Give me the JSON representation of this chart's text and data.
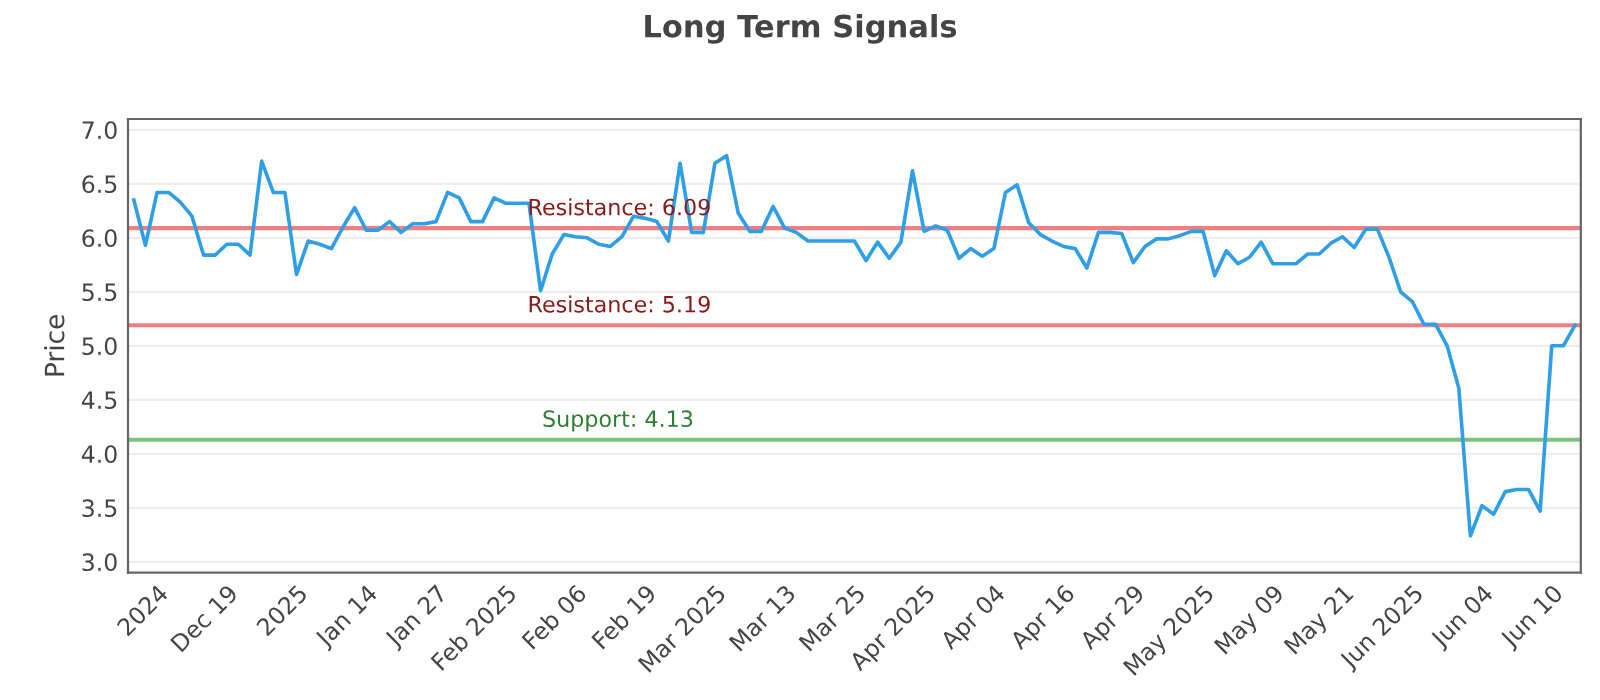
{
  "chart_data": {
    "type": "line",
    "title": "Long Term Signals",
    "ylabel": "Price",
    "categories": [
      null,
      null,
      "2024",
      null,
      null,
      null,
      null,
      null,
      "Dec 19",
      null,
      null,
      null,
      null,
      null,
      "2025",
      null,
      null,
      null,
      null,
      null,
      "Jan 14",
      null,
      null,
      null,
      null,
      null,
      "Jan 27",
      null,
      null,
      null,
      null,
      null,
      "Feb 2025",
      null,
      null,
      null,
      null,
      null,
      "Feb 06",
      null,
      null,
      null,
      null,
      null,
      "Feb 19",
      null,
      null,
      null,
      null,
      null,
      "Mar 2025",
      null,
      null,
      null,
      null,
      null,
      "Mar 13",
      null,
      null,
      null,
      null,
      null,
      "Mar 25",
      null,
      null,
      null,
      null,
      null,
      "Apr 2025",
      null,
      null,
      null,
      null,
      null,
      "Apr 04",
      null,
      null,
      null,
      null,
      null,
      "Apr 16",
      null,
      null,
      null,
      null,
      null,
      "Apr 29",
      null,
      null,
      null,
      null,
      null,
      "May 2025",
      null,
      null,
      null,
      null,
      null,
      "May 09",
      null,
      null,
      null,
      null,
      null,
      "May 21",
      null,
      null,
      null,
      null,
      null,
      "Jun 2025",
      null,
      null,
      null,
      null,
      null,
      "Jun 04",
      null,
      null,
      null,
      null,
      null,
      "Jun 10",
      null,
      null
    ],
    "series": [
      {
        "color": "#2e9fe6",
        "values": [
          6.35,
          5.93,
          6.42,
          6.42,
          6.33,
          6.2,
          5.84,
          5.84,
          5.94,
          5.94,
          5.84,
          6.71,
          6.42,
          6.42,
          5.66,
          5.97,
          5.94,
          5.9,
          6.1,
          6.28,
          6.07,
          6.07,
          6.15,
          6.05,
          6.13,
          6.13,
          6.15,
          6.42,
          6.37,
          6.15,
          6.15,
          6.37,
          6.32,
          6.32,
          6.32,
          5.51,
          5.85,
          6.03,
          6.01,
          6.0,
          5.94,
          5.92,
          6.01,
          6.2,
          6.18,
          6.15,
          5.97,
          6.69,
          6.05,
          6.05,
          6.69,
          6.76,
          6.23,
          6.06,
          6.06,
          6.29,
          6.09,
          6.05,
          5.97,
          5.97,
          5.97,
          5.97,
          5.97,
          5.79,
          5.96,
          5.81,
          5.96,
          6.62,
          6.06,
          6.11,
          6.07,
          5.81,
          5.9,
          5.83,
          5.9,
          6.42,
          6.49,
          6.14,
          6.03,
          5.97,
          5.92,
          5.9,
          5.72,
          6.05,
          6.05,
          6.04,
          5.77,
          5.92,
          5.99,
          5.99,
          6.02,
          6.06,
          6.06,
          5.65,
          5.88,
          5.76,
          5.82,
          5.96,
          5.76,
          5.76,
          5.76,
          5.85,
          5.85,
          5.95,
          6.01,
          5.91,
          6.08,
          6.08,
          5.82,
          5.5,
          5.41,
          5.2,
          5.2,
          5.0,
          4.61,
          3.24,
          3.52,
          3.44,
          3.65,
          3.67,
          3.67,
          3.47,
          5.0,
          5.0,
          5.19
        ]
      }
    ],
    "ylim": [
      2.9,
      7.1
    ],
    "yticks": [
      {
        "value": 3,
        "label": "3.0"
      },
      3.5,
      {
        "value": 4,
        "label": "4.0"
      },
      4.5,
      {
        "value": 5,
        "label": "5.0"
      },
      5.5,
      {
        "value": 6,
        "label": "6.0"
      },
      6.5,
      {
        "value": 7,
        "label": "7.0"
      }
    ],
    "grid": "y",
    "ref_lines": [
      {
        "axis": "y",
        "value": 6.09,
        "label": "Resistance: 6.09",
        "color": "#f08080"
      },
      {
        "axis": "y",
        "value": 5.19,
        "label": "Resistance: 5.19",
        "color": "#f08080"
      },
      {
        "axis": "y",
        "value": 4.13,
        "label": "Support: 4.13",
        "color": "#7cc47c"
      }
    ]
  }
}
